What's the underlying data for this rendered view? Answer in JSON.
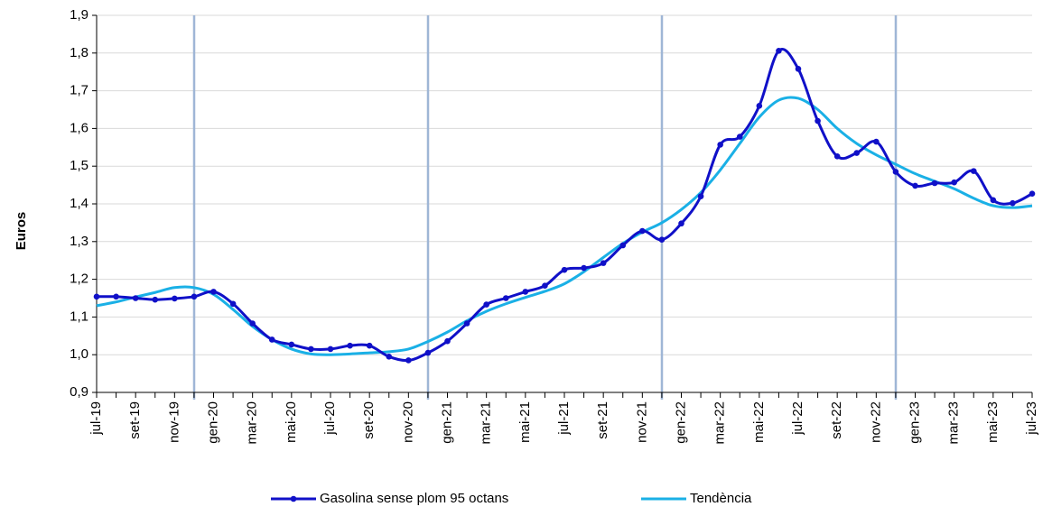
{
  "chart_data": {
    "type": "line",
    "y_label": "Euros",
    "categories": [
      "jul-19",
      null,
      "set-19",
      null,
      "nov-19",
      null,
      "gen-20",
      null,
      "mar-20",
      null,
      "mai-20",
      null,
      "jul-20",
      null,
      "set-20",
      null,
      "nov-20",
      null,
      "gen-21",
      null,
      "mar-21",
      null,
      "mai-21",
      null,
      "jul-21",
      null,
      "set-21",
      null,
      "nov-21",
      null,
      "gen-22",
      null,
      "mar-22",
      null,
      "mai-22",
      null,
      "jul-22",
      null,
      "set-22",
      null,
      "nov-22",
      null,
      "gen-23",
      null,
      "mar-23",
      null,
      "mai-23",
      null,
      "jul-23"
    ],
    "series": [
      {
        "name": "Gasolina sense plom 95 octans",
        "color": "#1010c8",
        "markers": true,
        "values": [
          1.154,
          1.154,
          1.15,
          1.146,
          1.149,
          1.154,
          1.167,
          1.135,
          1.083,
          1.04,
          1.027,
          1.015,
          1.015,
          1.024,
          1.024,
          0.995,
          0.985,
          1.005,
          1.036,
          1.083,
          1.133,
          1.15,
          1.167,
          1.183,
          1.225,
          1.23,
          1.243,
          1.29,
          1.328,
          1.305,
          1.348,
          1.42,
          1.557,
          1.578,
          1.66,
          1.806,
          1.758,
          1.62,
          1.526,
          1.535,
          1.565,
          1.485,
          1.448,
          1.455,
          1.457,
          1.487,
          1.41,
          1.402,
          1.427
        ]
      },
      {
        "name": "Tendència",
        "color": "#1ab0e6",
        "markers": false,
        "values": [
          1.13,
          1.14,
          1.153,
          1.165,
          1.178,
          1.178,
          1.16,
          1.12,
          1.075,
          1.04,
          1.015,
          1.002,
          1.0,
          1.002,
          1.005,
          1.008,
          1.015,
          1.035,
          1.06,
          1.09,
          1.115,
          1.135,
          1.152,
          1.168,
          1.188,
          1.22,
          1.258,
          1.295,
          1.325,
          1.35,
          1.385,
          1.43,
          1.49,
          1.56,
          1.63,
          1.675,
          1.68,
          1.65,
          1.6,
          1.56,
          1.53,
          1.505,
          1.48,
          1.46,
          1.44,
          1.415,
          1.395,
          1.39,
          1.395
        ]
      }
    ],
    "ylim": [
      0.9,
      1.9
    ],
    "yticks": [
      {
        "value": 0.9,
        "label": "0,9"
      },
      {
        "value": 1.0,
        "label": "1,0"
      },
      {
        "value": 1.1,
        "label": "1,1"
      },
      {
        "value": 1.2,
        "label": "1,2"
      },
      {
        "value": 1.3,
        "label": "1,3"
      },
      {
        "value": 1.4,
        "label": "1,4"
      },
      {
        "value": 1.5,
        "label": "1,5"
      },
      {
        "value": 1.6,
        "label": "1,6"
      },
      {
        "value": 1.7,
        "label": "1,7"
      },
      {
        "value": 1.8,
        "label": "1,8"
      },
      {
        "value": 1.9,
        "label": "1,9"
      }
    ],
    "grid": true,
    "legend": "bottom"
  }
}
